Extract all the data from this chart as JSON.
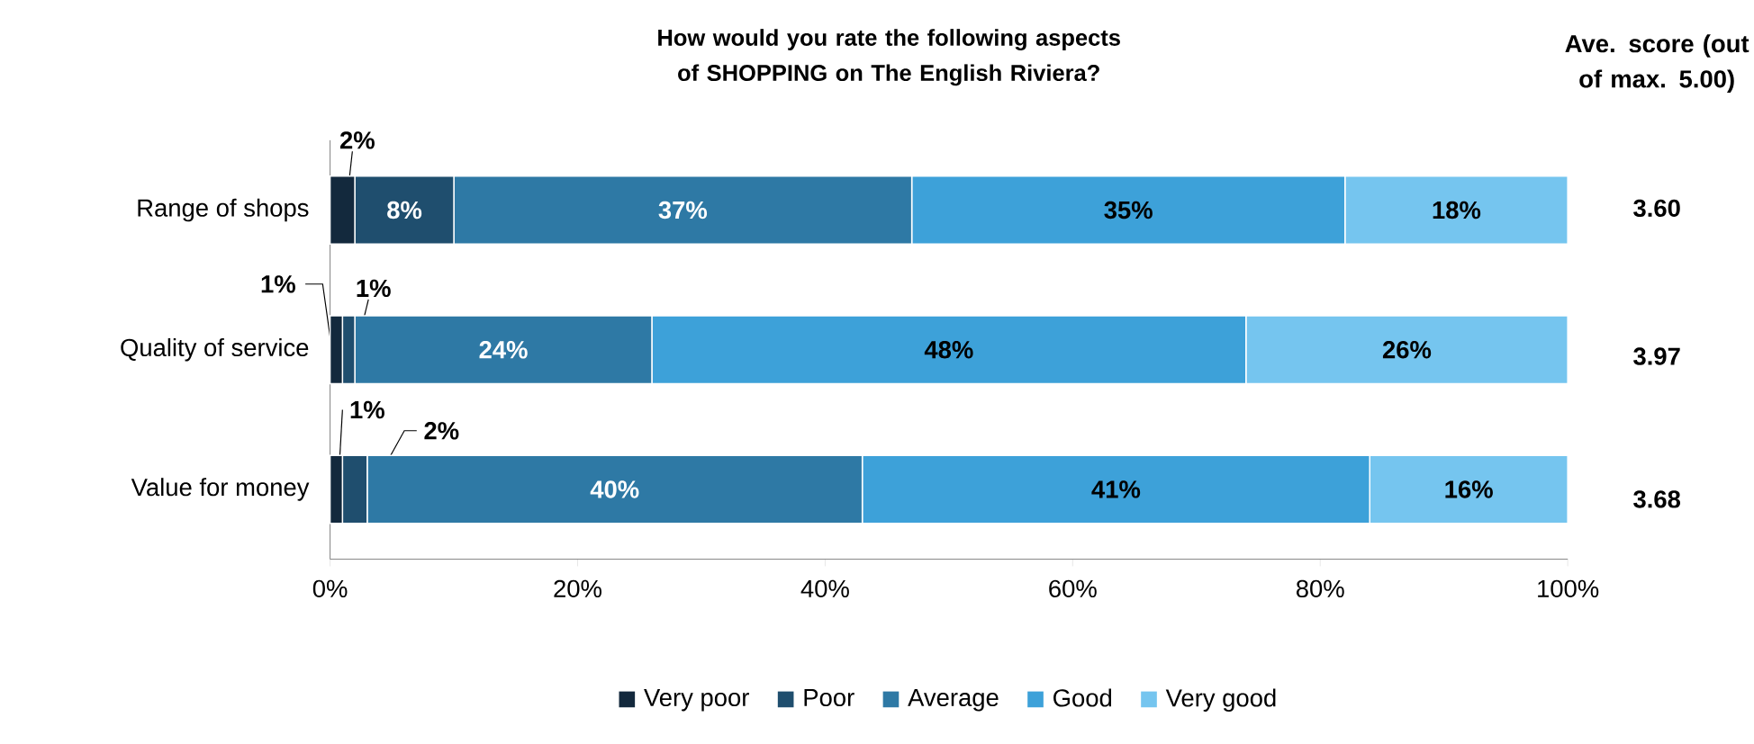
{
  "chart_data": {
    "type": "bar",
    "orientation": "horizontal",
    "stacked": true,
    "title": "How would you rate the following aspects of SHOPPING on The English Riviera?",
    "categories": [
      "Range of shops",
      "Quality of service",
      "Value for money"
    ],
    "series": [
      {
        "name": "Very poor",
        "color": "#13293d",
        "values": [
          2,
          1,
          1
        ],
        "value_labels": [
          "2%",
          "1%",
          "1%"
        ]
      },
      {
        "name": "Poor",
        "color": "#1f4e6e",
        "values": [
          8,
          1,
          2
        ],
        "value_labels": [
          "8%",
          "1%",
          "2%"
        ]
      },
      {
        "name": "Average",
        "color": "#2e79a5",
        "values": [
          37,
          24,
          40
        ],
        "value_labels": [
          "37%",
          "24%",
          "40%"
        ]
      },
      {
        "name": "Good",
        "color": "#3da1d9",
        "values": [
          35,
          48,
          41
        ],
        "value_labels": [
          "35%",
          "48%",
          "41%"
        ]
      },
      {
        "name": "Very good",
        "color": "#75c5ef",
        "values": [
          18,
          26,
          16
        ],
        "value_labels": [
          "18%",
          "26%",
          "16%"
        ]
      }
    ],
    "xlim": [
      0,
      100
    ],
    "xticks": [
      {
        "value": 0,
        "label": "0%"
      },
      {
        "value": 20,
        "label": "20%"
      },
      {
        "value": 40,
        "label": "40%"
      },
      {
        "value": 60,
        "label": "60%"
      },
      {
        "value": 80,
        "label": "80%"
      },
      {
        "value": 100,
        "label": "100%"
      }
    ],
    "grid": false,
    "legend": "bottom",
    "annotations": [
      "Ave. score (out of max. 5.00)",
      "3.60",
      "3.97",
      "3.68"
    ]
  }
}
